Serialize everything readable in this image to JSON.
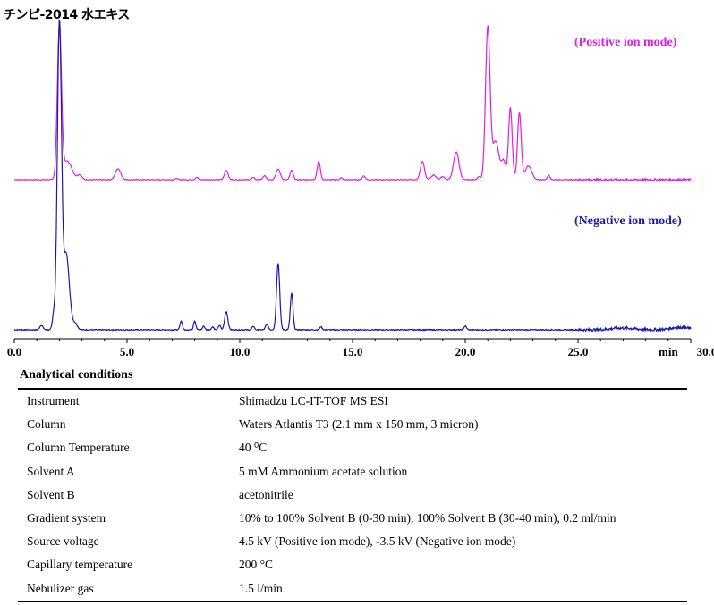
{
  "title": "チンピ-2014 水エキス",
  "chart_data": {
    "type": "line",
    "x_range": [
      0,
      30
    ],
    "x_ticks": [
      "0.0",
      "5.0",
      "10.0",
      "15.0",
      "20.0",
      "25.0",
      "30.0"
    ],
    "x_unit": "min",
    "series": [
      {
        "name": "(Positive ion mode)",
        "color": "#e020e0",
        "peaks": [
          [
            2.0,
            1.0,
            0.09
          ],
          [
            2.35,
            0.12,
            0.2
          ],
          [
            2.9,
            0.03,
            0.1
          ],
          [
            4.6,
            0.07,
            0.12
          ],
          [
            7.2,
            0.008,
            0.05
          ],
          [
            8.1,
            0.015,
            0.06
          ],
          [
            9.4,
            0.06,
            0.08
          ],
          [
            10.6,
            0.015,
            0.06
          ],
          [
            11.1,
            0.025,
            0.07
          ],
          [
            11.7,
            0.07,
            0.09
          ],
          [
            12.3,
            0.06,
            0.07
          ],
          [
            13.5,
            0.12,
            0.07
          ],
          [
            14.5,
            0.012,
            0.05
          ],
          [
            15.5,
            0.025,
            0.06
          ],
          [
            18.1,
            0.12,
            0.09
          ],
          [
            18.6,
            0.03,
            0.1
          ],
          [
            19.0,
            0.02,
            0.08
          ],
          [
            19.6,
            0.18,
            0.12
          ],
          [
            20.6,
            0.02,
            0.06
          ],
          [
            21.0,
            1.0,
            0.1
          ],
          [
            21.35,
            0.25,
            0.14
          ],
          [
            21.7,
            0.12,
            0.1
          ],
          [
            22.0,
            0.47,
            0.08
          ],
          [
            22.4,
            0.44,
            0.08
          ],
          [
            22.8,
            0.09,
            0.14
          ],
          [
            23.7,
            0.03,
            0.06
          ]
        ]
      },
      {
        "name": "(Negative ion mode)",
        "color": "#1a1aa8",
        "peaks": [
          [
            1.2,
            0.015,
            0.07
          ],
          [
            1.75,
            0.05,
            0.06
          ],
          [
            2.0,
            1.0,
            0.09
          ],
          [
            2.3,
            0.25,
            0.14
          ],
          [
            2.7,
            0.02,
            0.1
          ],
          [
            7.4,
            0.03,
            0.05
          ],
          [
            8.0,
            0.03,
            0.05
          ],
          [
            8.4,
            0.012,
            0.05
          ],
          [
            8.8,
            0.01,
            0.05
          ],
          [
            9.1,
            0.015,
            0.05
          ],
          [
            9.4,
            0.06,
            0.07
          ],
          [
            10.6,
            0.012,
            0.05
          ],
          [
            11.2,
            0.018,
            0.06
          ],
          [
            11.7,
            0.22,
            0.07
          ],
          [
            12.3,
            0.12,
            0.06
          ],
          [
            13.6,
            0.01,
            0.05
          ],
          [
            20.0,
            0.012,
            0.06
          ],
          [
            27.0,
            0.006,
            0.5
          ],
          [
            29.5,
            0.008,
            0.4
          ]
        ]
      }
    ]
  },
  "conditions_title": "Analytical conditions",
  "conditions": [
    {
      "label": "Instrument",
      "value": "Shimadzu LC-IT-TOF MS ESI"
    },
    {
      "label": "Column",
      "value": "Waters Atlantis T3 (2.1 mm x 150 mm, 3 micron)"
    },
    {
      "label": "Column Temperature",
      "value": "40 ⁰C"
    },
    {
      "label": "Solvent A",
      "value": "5 mM Ammonium acetate solution"
    },
    {
      "label": "Solvent B",
      "value": "acetonitrile"
    },
    {
      "label": "Gradient system",
      "value": "10% to 100% Solvent B (0-30 min), 100% Solvent B (30-40 min), 0.2 ml/min"
    },
    {
      "label": "Source voltage",
      "value": "4.5 kV (Positive ion mode), -3.5 kV (Negative ion mode)"
    },
    {
      "label": "Capillary temperature",
      "value": "200 °C"
    },
    {
      "label": "Nebulizer gas",
      "value": "1.5 l/min"
    }
  ]
}
